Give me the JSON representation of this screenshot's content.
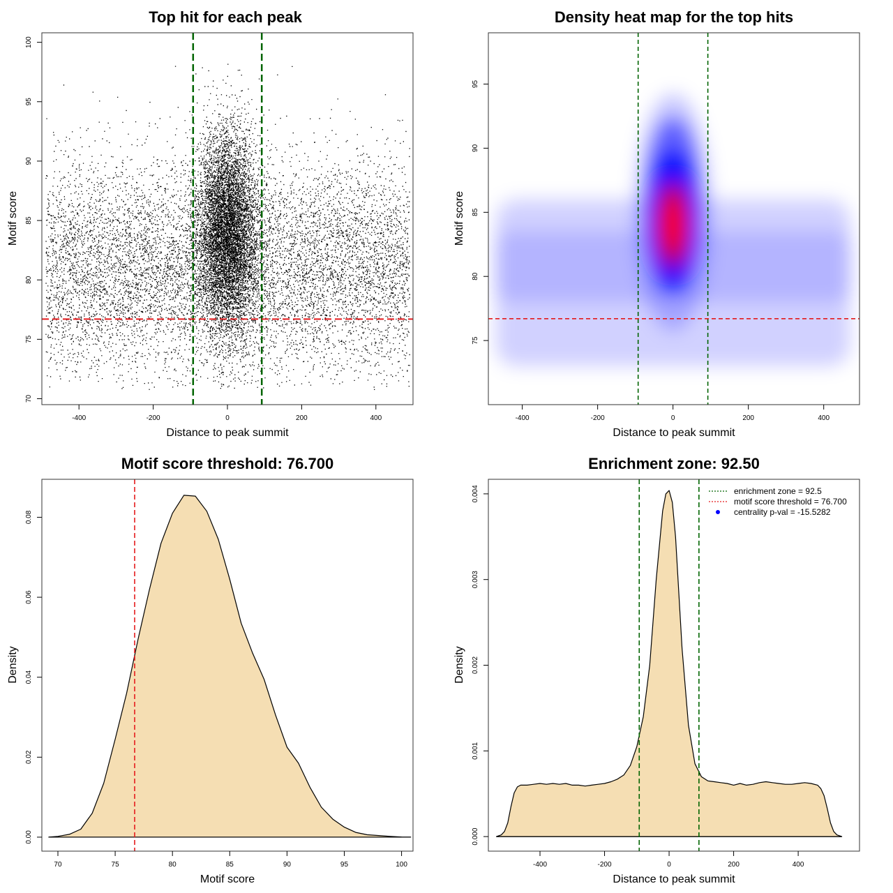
{
  "chart_data": [
    {
      "type": "scatter",
      "title": "Top hit for each peak",
      "xlabel": "Distance to peak summit",
      "ylabel": "Motif score",
      "xlim": [
        -500,
        500
      ],
      "ylim": [
        69.5,
        100.8
      ],
      "xticks": [
        -400,
        -200,
        0,
        200,
        400
      ],
      "yticks": [
        70,
        75,
        80,
        85,
        90,
        95,
        100
      ],
      "enrichment_zone": 92.5,
      "motif_score_threshold": 76.7,
      "central_cluster": {
        "x_center": 0,
        "x_sd": 40,
        "y_center": 84,
        "y_sd": 4.2
      },
      "background": {
        "x_range": [
          -490,
          490
        ],
        "y_center": 81,
        "y_sd": 4.5
      }
    },
    {
      "type": "heatmap",
      "title": "Density heat map for the top hits",
      "xlabel": "Distance to peak summit",
      "ylabel": "Motif score",
      "xlim": [
        -490,
        495
      ],
      "ylim": [
        70,
        99
      ],
      "xticks": [
        -400,
        -200,
        0,
        200,
        400
      ],
      "yticks": [
        75,
        80,
        85,
        90,
        95
      ],
      "enrichment_zone": 92.5,
      "motif_score_threshold": 76.7,
      "hot_spot": {
        "x": 0,
        "y": 84
      }
    },
    {
      "type": "area",
      "title": "Motif score threshold: 76.700",
      "xlabel": "Motif score",
      "ylabel": "Density",
      "xlim": [
        68.6,
        101
      ],
      "ylim": [
        -0.0035,
        0.0895
      ],
      "xticks": [
        70,
        75,
        80,
        85,
        90,
        95,
        100
      ],
      "yticks": [
        0,
        0.02,
        0.04,
        0.06,
        0.08
      ],
      "ytick_labels": [
        "0.00",
        "0.02",
        "0.04",
        "0.06",
        "0.08"
      ],
      "threshold": 76.7,
      "x": [
        69.2,
        70,
        71,
        72,
        73,
        74,
        75,
        76,
        77,
        78,
        79,
        80,
        81,
        82,
        83,
        84,
        85,
        86,
        87,
        88,
        89,
        90,
        91,
        92,
        93,
        94,
        95,
        96,
        97,
        98,
        99,
        100,
        100.8
      ],
      "y": [
        0,
        0.0002,
        0.0007,
        0.002,
        0.006,
        0.0135,
        0.0245,
        0.036,
        0.0495,
        0.062,
        0.0735,
        0.081,
        0.0855,
        0.0853,
        0.0815,
        0.0745,
        0.0645,
        0.0535,
        0.046,
        0.0395,
        0.0305,
        0.0225,
        0.0185,
        0.0125,
        0.0075,
        0.0045,
        0.0025,
        0.0012,
        0.0006,
        0.0004,
        0.0002,
        5e-05,
        0
      ]
    },
    {
      "type": "area",
      "title": "Enrichment zone: 92.50",
      "xlabel": "Distance to peak summit",
      "ylabel": "Density",
      "xlim": [
        -560,
        590
      ],
      "ylim": [
        -0.00017,
        0.00417
      ],
      "xticks": [
        -400,
        -200,
        0,
        200,
        400
      ],
      "yticks": [
        0,
        0.001,
        0.002,
        0.003,
        0.004
      ],
      "ytick_labels": [
        "0.000",
        "0.001",
        "0.002",
        "0.003",
        "0.004"
      ],
      "enrichment_zone": 92.5,
      "x": [
        -535,
        -520,
        -510,
        -500,
        -490,
        -480,
        -470,
        -460,
        -440,
        -420,
        -400,
        -380,
        -360,
        -340,
        -320,
        -300,
        -280,
        -260,
        -240,
        -220,
        -200,
        -180,
        -160,
        -140,
        -120,
        -100,
        -80,
        -60,
        -40,
        -20,
        -10,
        0,
        10,
        20,
        40,
        60,
        80,
        100,
        120,
        140,
        160,
        180,
        200,
        220,
        240,
        260,
        280,
        300,
        320,
        340,
        360,
        380,
        400,
        420,
        440,
        460,
        470,
        480,
        490,
        500,
        510,
        520,
        535
      ],
      "y": [
        0,
        2e-05,
        6e-05,
        0.00016,
        0.00035,
        0.00051,
        0.00058,
        0.0006,
        0.0006,
        0.00061,
        0.00062,
        0.00061,
        0.00062,
        0.00061,
        0.00062,
        0.0006,
        0.0006,
        0.00059,
        0.0006,
        0.00061,
        0.00062,
        0.00064,
        0.00067,
        0.00072,
        0.00083,
        0.00105,
        0.0014,
        0.002,
        0.003,
        0.0038,
        0.004,
        0.00404,
        0.0039,
        0.0035,
        0.0022,
        0.0013,
        0.00085,
        0.0007,
        0.00065,
        0.00064,
        0.00063,
        0.00062,
        0.0006,
        0.00062,
        0.0006,
        0.00061,
        0.00063,
        0.00064,
        0.00063,
        0.00062,
        0.00061,
        0.00061,
        0.00062,
        0.00063,
        0.00062,
        0.0006,
        0.00056,
        0.00048,
        0.00033,
        0.00016,
        6e-05,
        2e-05,
        0
      ]
    }
  ],
  "legend": {
    "items": [
      {
        "label": "enrichment zone = 92.5",
        "color": "#006400",
        "style": "dotted-line"
      },
      {
        "label": "motif score threshold = 76.700",
        "color": "#e41a1c",
        "style": "dotted-line"
      },
      {
        "label": "centrality p-val = -15.5282",
        "color": "#0000ff",
        "style": "point"
      }
    ]
  },
  "colors": {
    "points": "#000000",
    "enrichment_line": "#006400",
    "threshold_line": "#e41a1c",
    "density_fill": "#f5deb3",
    "heat_low": "#ffffff",
    "heat_mid": "#0000ff",
    "heat_high": "#ff0000"
  }
}
